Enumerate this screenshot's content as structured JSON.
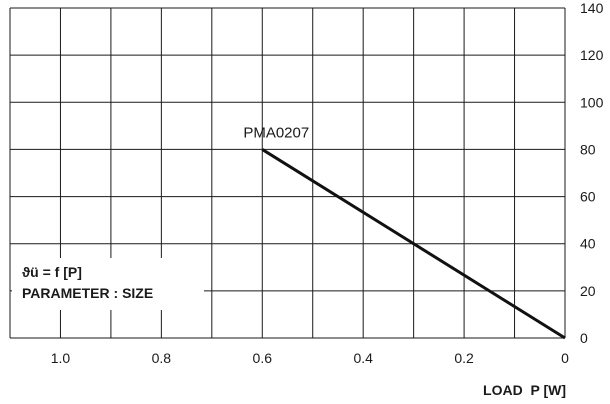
{
  "chart_data": {
    "type": "line",
    "xlabel": "LOAD  P [W]",
    "ylabel": "",
    "xlim": [
      1.1,
      0
    ],
    "ylim": [
      0,
      140
    ],
    "x_reversed": true,
    "grid": true,
    "x_ticks": [
      1.0,
      0.8,
      0.6,
      0.4,
      0.2,
      0
    ],
    "x_tick_labels": [
      "1.0",
      "0.8",
      "0.6",
      "0.4",
      "0.2",
      "0"
    ],
    "y_ticks": [
      0,
      20,
      40,
      60,
      80,
      100,
      120,
      140
    ],
    "y_tick_labels": [
      "0",
      "20",
      "40",
      "60",
      "80",
      "100",
      "120",
      "140"
    ],
    "y_axis_side": "right",
    "series": [
      {
        "name": "PMA0207",
        "x": [
          0.6,
          0
        ],
        "y": [
          80,
          0
        ]
      }
    ],
    "annotations": [
      "ϑü = f [P]",
      "PARAMETER : SIZE"
    ],
    "colors": {
      "line": "#111111",
      "grid": "#1a1a1a"
    }
  }
}
